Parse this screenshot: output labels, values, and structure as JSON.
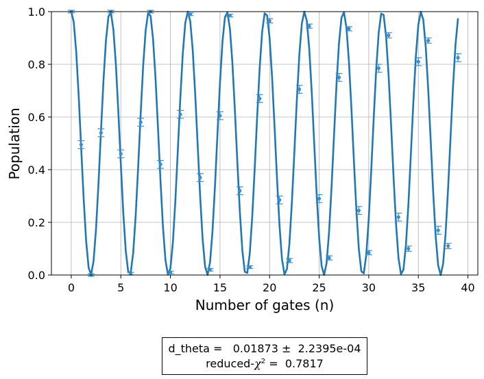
{
  "chart_data": {
    "type": "scatter",
    "xlabel": "Number of gates (n)",
    "ylabel": "Population",
    "xlim": [
      -2,
      41
    ],
    "ylim": [
      0,
      1
    ],
    "xticks": [
      "0",
      "5",
      "10",
      "15",
      "20",
      "25",
      "30",
      "35",
      "40"
    ],
    "yticks": [
      "0.0",
      "0.2",
      "0.4",
      "0.6",
      "0.8",
      "1.0"
    ],
    "grid": true,
    "fit_curve": {
      "period_gates": 3.92,
      "shape": "cos^2 oscillation between 1.0 and 0.0"
    },
    "points": [
      {
        "x": 0,
        "y": 1.0,
        "err": 0.0
      },
      {
        "x": 1,
        "y": 0.495,
        "err": 0.015
      },
      {
        "x": 2,
        "y": 0.0,
        "err": 0.0
      },
      {
        "x": 3,
        "y": 0.54,
        "err": 0.015
      },
      {
        "x": 4,
        "y": 1.0,
        "err": 0.0
      },
      {
        "x": 5,
        "y": 0.46,
        "err": 0.015
      },
      {
        "x": 6,
        "y": 0.005,
        "err": 0.005
      },
      {
        "x": 7,
        "y": 0.58,
        "err": 0.015
      },
      {
        "x": 8,
        "y": 1.0,
        "err": 0.0
      },
      {
        "x": 9,
        "y": 0.42,
        "err": 0.015
      },
      {
        "x": 10,
        "y": 0.01,
        "err": 0.005
      },
      {
        "x": 11,
        "y": 0.61,
        "err": 0.015
      },
      {
        "x": 12,
        "y": 0.99,
        "err": 0.005
      },
      {
        "x": 13,
        "y": 0.37,
        "err": 0.015
      },
      {
        "x": 14,
        "y": 0.02,
        "err": 0.005
      },
      {
        "x": 15,
        "y": 0.605,
        "err": 0.015
      },
      {
        "x": 16,
        "y": 0.985,
        "err": 0.005
      },
      {
        "x": 17,
        "y": 0.32,
        "err": 0.015
      },
      {
        "x": 18,
        "y": 0.03,
        "err": 0.005
      },
      {
        "x": 19,
        "y": 0.67,
        "err": 0.015
      },
      {
        "x": 20,
        "y": 0.965,
        "err": 0.008
      },
      {
        "x": 21,
        "y": 0.285,
        "err": 0.015
      },
      {
        "x": 22,
        "y": 0.055,
        "err": 0.008
      },
      {
        "x": 23,
        "y": 0.705,
        "err": 0.015
      },
      {
        "x": 24,
        "y": 0.945,
        "err": 0.008
      },
      {
        "x": 25,
        "y": 0.29,
        "err": 0.015
      },
      {
        "x": 26,
        "y": 0.065,
        "err": 0.008
      },
      {
        "x": 27,
        "y": 0.75,
        "err": 0.015
      },
      {
        "x": 28,
        "y": 0.935,
        "err": 0.008
      },
      {
        "x": 29,
        "y": 0.245,
        "err": 0.015
      },
      {
        "x": 30,
        "y": 0.085,
        "err": 0.008
      },
      {
        "x": 31,
        "y": 0.785,
        "err": 0.015
      },
      {
        "x": 32,
        "y": 0.91,
        "err": 0.01
      },
      {
        "x": 33,
        "y": 0.22,
        "err": 0.015
      },
      {
        "x": 34,
        "y": 0.1,
        "err": 0.01
      },
      {
        "x": 35,
        "y": 0.81,
        "err": 0.015
      },
      {
        "x": 36,
        "y": 0.89,
        "err": 0.01
      },
      {
        "x": 37,
        "y": 0.17,
        "err": 0.015
      },
      {
        "x": 38,
        "y": 0.11,
        "err": 0.01
      },
      {
        "x": 39,
        "y": 0.825,
        "err": 0.015
      }
    ],
    "colors": {
      "data": "#3a8fd0",
      "fit": "#1f77b4",
      "grid": "#b0b0b0"
    }
  },
  "fit_results": {
    "line1_label": "d_theta =",
    "line1_value": "0.01873",
    "line1_pm": "±",
    "line1_err": "2.2395e-04",
    "line2_label_prefix": "reduced-",
    "line2_chi": "χ",
    "line2_sup": "2",
    "line2_eq": "=",
    "line2_value": "0.7817"
  }
}
